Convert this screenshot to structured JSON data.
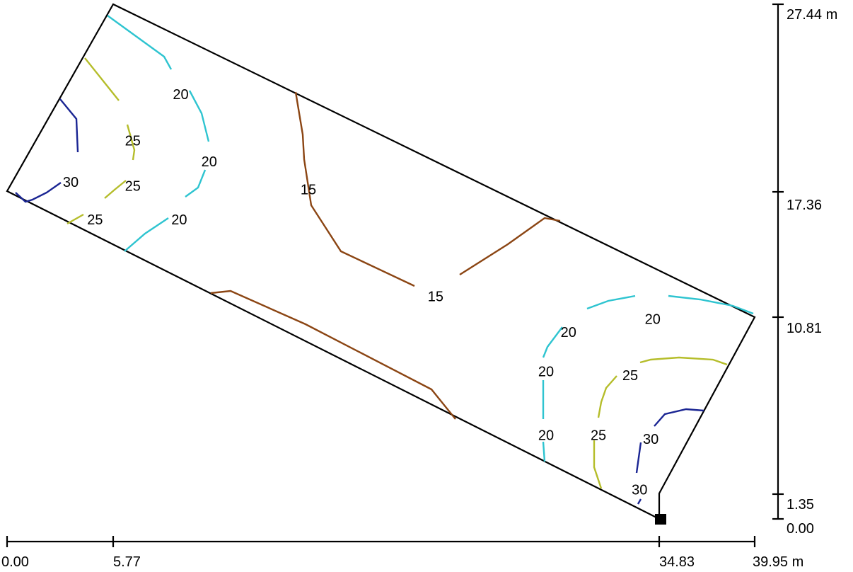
{
  "chart_data": {
    "type": "contour",
    "x_unit": "m",
    "y_unit": "m",
    "x_ticks": [
      "0.00",
      "5.77",
      "34.83",
      "39.95 m"
    ],
    "y_ticks": [
      "27.44 m",
      "17.36",
      "10.81",
      "1.35",
      "0.00"
    ],
    "xlim": [
      0,
      39.95
    ],
    "ylim": [
      0,
      27.44
    ],
    "boundary_m": [
      [
        5.7,
        27.44
      ],
      [
        0.0,
        17.3
      ],
      [
        34.83,
        0.0
      ],
      [
        34.83,
        1.35
      ],
      [
        39.95,
        10.81
      ]
    ],
    "reference_point_m": [
      34.83,
      0.0
    ],
    "levels": [
      {
        "value": "15",
        "color": "#8B4513"
      },
      {
        "value": "20",
        "color": "#2EC4D0"
      },
      {
        "value": "25",
        "color": "#B5BD2A"
      },
      {
        "value": "30",
        "color": "#1A2593"
      }
    ],
    "contour_labels": [
      {
        "text": "20",
        "x": 9.28,
        "y": 22.58
      },
      {
        "text": "25",
        "x": 6.72,
        "y": 20.1
      },
      {
        "text": "20",
        "x": 10.8,
        "y": 19.0
      },
      {
        "text": "30",
        "x": 3.4,
        "y": 17.9
      },
      {
        "text": "15",
        "x": 16.1,
        "y": 17.5
      },
      {
        "text": "25",
        "x": 6.72,
        "y": 17.7
      },
      {
        "text": "25",
        "x": 4.7,
        "y": 15.9
      },
      {
        "text": "20",
        "x": 9.2,
        "y": 15.9
      },
      {
        "text": "15",
        "x": 22.9,
        "y": 11.8
      },
      {
        "text": "20",
        "x": 34.5,
        "y": 10.6
      },
      {
        "text": "20",
        "x": 30.0,
        "y": 9.9
      },
      {
        "text": "20",
        "x": 28.8,
        "y": 7.8
      },
      {
        "text": "25",
        "x": 33.3,
        "y": 7.6
      },
      {
        "text": "20",
        "x": 28.8,
        "y": 4.4
      },
      {
        "text": "25",
        "x": 31.6,
        "y": 4.4
      },
      {
        "text": "30",
        "x": 34.4,
        "y": 4.2
      },
      {
        "text": "30",
        "x": 33.8,
        "y": 1.5
      }
    ]
  }
}
